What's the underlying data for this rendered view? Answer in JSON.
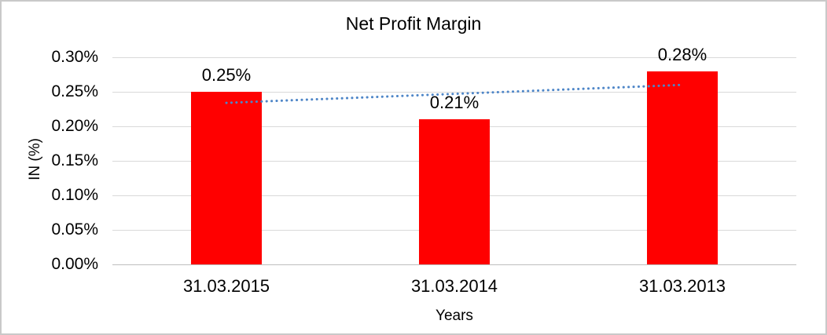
{
  "chart_data": {
    "type": "bar",
    "title": "Net Profit Margin",
    "xlabel": "Years",
    "ylabel": "IN (%)",
    "categories": [
      "31.03.2015",
      "31.03.2014",
      "31.03.2013"
    ],
    "values": [
      0.25,
      0.21,
      0.28
    ],
    "data_labels": [
      "0.25%",
      "0.21%",
      "0.28%"
    ],
    "yticks": [
      "0.30%",
      "0.25%",
      "0.20%",
      "0.15%",
      "0.10%",
      "0.05%",
      "0.00%"
    ],
    "ylim": [
      0,
      0.3
    ],
    "grid": true,
    "legend": false,
    "bar_color": "#FF0000",
    "gridline_color": "#D9D9D9",
    "axis_line_color": "#BFBFBF",
    "text_color": "#000000",
    "trendline": {
      "type": "linear",
      "style": "dotted",
      "color": "#4E86C8",
      "start_value": 0.234,
      "end_value": 0.26
    }
  }
}
